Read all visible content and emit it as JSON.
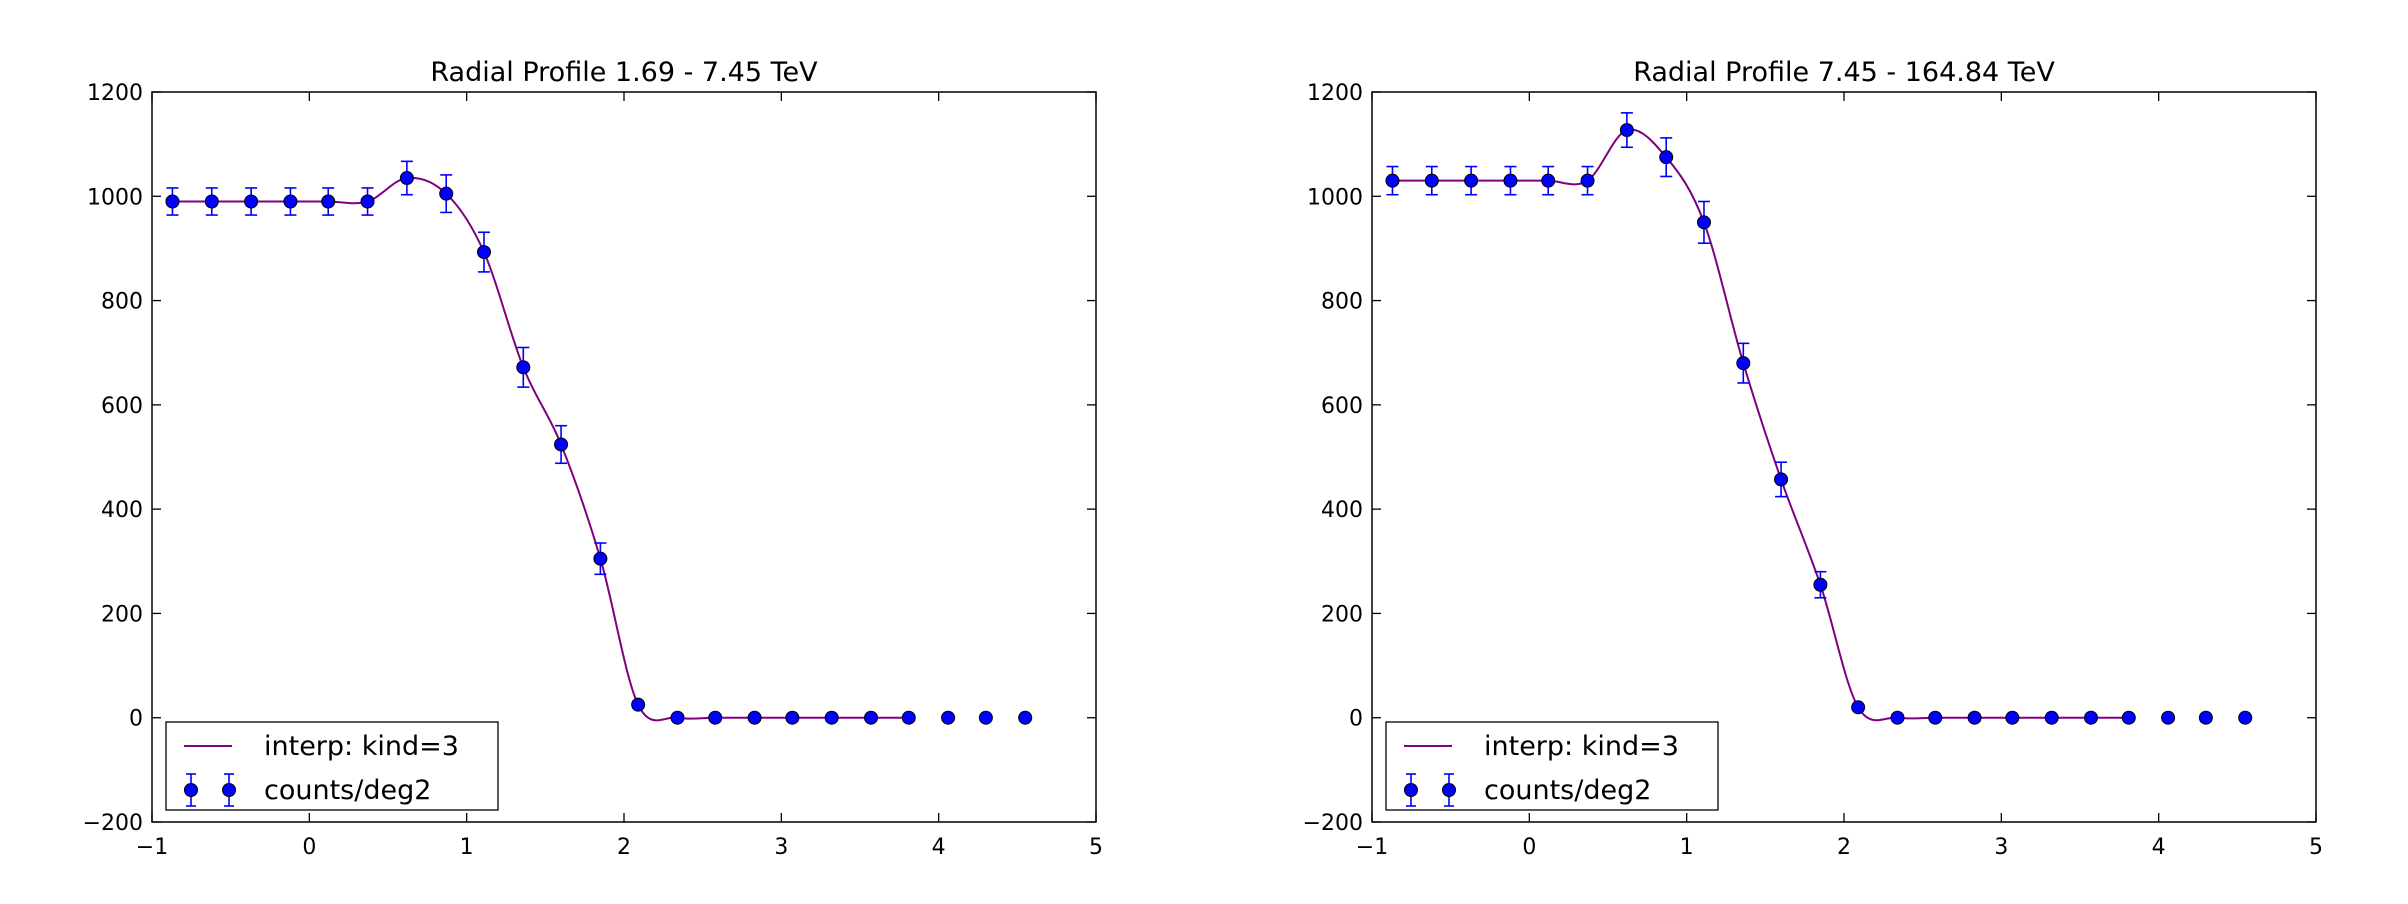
{
  "chart_data": [
    {
      "type": "scatter",
      "title": "Radial Profile 1.69 - 7.45 TeV",
      "xlabel": "",
      "ylabel": "",
      "xlim": [
        -1,
        5
      ],
      "ylim": [
        -200,
        1200
      ],
      "xticks": [
        -1,
        0,
        1,
        2,
        3,
        4,
        5
      ],
      "yticks": [
        -200,
        0,
        200,
        400,
        600,
        800,
        1000,
        1200
      ],
      "xtick_labels": [
        "−1",
        "0",
        "1",
        "2",
        "3",
        "4",
        "5"
      ],
      "ytick_labels": [
        "−200",
        "0",
        "200",
        "400",
        "600",
        "800",
        "1000",
        "1200"
      ],
      "legend": {
        "position": "lower-left",
        "entries": [
          {
            "label": "interp: kind=3",
            "kind": "line",
            "color": "#800080"
          },
          {
            "label": "counts/deg2",
            "kind": "errorbar",
            "color": "#0000ff"
          }
        ]
      },
      "series": [
        {
          "name": "counts/deg2",
          "kind": "errorbar",
          "color": "#0000ff",
          "x": [
            -0.87,
            -0.62,
            -0.37,
            -0.12,
            0.12,
            0.37,
            0.62,
            0.87,
            1.11,
            1.36,
            1.6,
            1.85,
            2.09,
            2.34,
            2.58,
            2.83,
            3.07,
            3.32,
            3.57,
            3.81,
            4.06,
            4.3,
            4.55
          ],
          "y": [
            990,
            990,
            990,
            990,
            990,
            990,
            1035,
            1005,
            893,
            672,
            524,
            305,
            25,
            0,
            0,
            0,
            0,
            0,
            0,
            0,
            0,
            0,
            0
          ],
          "yerr": [
            26,
            26,
            26,
            26,
            26,
            26,
            32,
            36,
            38,
            38,
            36,
            30,
            6,
            0,
            0,
            0,
            0,
            0,
            0,
            0,
            0,
            0,
            0
          ]
        },
        {
          "name": "interp: kind=3",
          "kind": "line",
          "color": "#800080",
          "x": [
            -0.87,
            -0.62,
            -0.37,
            -0.12,
            0.12,
            0.37,
            0.62,
            0.87,
            1.11,
            1.36,
            1.6,
            1.85,
            2.09,
            2.34,
            2.58,
            2.83,
            3.07,
            3.32,
            3.57,
            3.81
          ],
          "y": [
            990,
            990,
            990,
            990,
            990,
            990,
            1035,
            1005,
            893,
            672,
            524,
            305,
            25,
            0,
            0,
            0,
            0,
            0,
            0,
            0
          ]
        }
      ]
    },
    {
      "type": "scatter",
      "title": "Radial Profile 7.45 - 164.84 TeV",
      "xlabel": "",
      "ylabel": "",
      "xlim": [
        -1,
        5
      ],
      "ylim": [
        -200,
        1200
      ],
      "xticks": [
        -1,
        0,
        1,
        2,
        3,
        4,
        5
      ],
      "yticks": [
        -200,
        0,
        200,
        400,
        600,
        800,
        1000,
        1200
      ],
      "xtick_labels": [
        "−1",
        "0",
        "1",
        "2",
        "3",
        "4",
        "5"
      ],
      "ytick_labels": [
        "−200",
        "0",
        "200",
        "400",
        "600",
        "800",
        "1000",
        "1200"
      ],
      "legend": {
        "position": "lower-left",
        "entries": [
          {
            "label": "interp: kind=3",
            "kind": "line",
            "color": "#800080"
          },
          {
            "label": "counts/deg2",
            "kind": "errorbar",
            "color": "#0000ff"
          }
        ]
      },
      "series": [
        {
          "name": "counts/deg2",
          "kind": "errorbar",
          "color": "#0000ff",
          "x": [
            -0.87,
            -0.62,
            -0.37,
            -0.12,
            0.12,
            0.37,
            0.62,
            0.87,
            1.11,
            1.36,
            1.6,
            1.85,
            2.09,
            2.34,
            2.58,
            2.83,
            3.07,
            3.32,
            3.57,
            3.81,
            4.06,
            4.3,
            4.55
          ],
          "y": [
            1030,
            1030,
            1030,
            1030,
            1030,
            1030,
            1127,
            1075,
            950,
            680,
            457,
            255,
            20,
            0,
            0,
            0,
            0,
            0,
            0,
            0,
            0,
            0,
            0
          ],
          "yerr": [
            27,
            27,
            27,
            27,
            27,
            27,
            33,
            37,
            40,
            38,
            33,
            25,
            5,
            0,
            0,
            0,
            0,
            0,
            0,
            0,
            0,
            0,
            0
          ]
        },
        {
          "name": "interp: kind=3",
          "kind": "line",
          "color": "#800080",
          "x": [
            -0.87,
            -0.62,
            -0.37,
            -0.12,
            0.12,
            0.37,
            0.62,
            0.87,
            1.11,
            1.36,
            1.6,
            1.85,
            2.09,
            2.34,
            2.58,
            2.83,
            3.07,
            3.32,
            3.57,
            3.81
          ],
          "y": [
            1030,
            1030,
            1030,
            1030,
            1030,
            1030,
            1127,
            1075,
            950,
            680,
            457,
            255,
            20,
            0,
            0,
            0,
            0,
            0,
            0,
            0
          ]
        }
      ]
    }
  ]
}
